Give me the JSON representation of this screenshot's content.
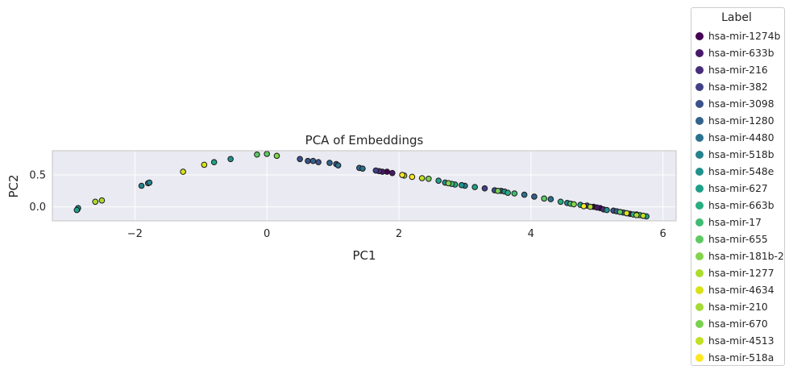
{
  "chart_data": {
    "type": "scatter",
    "title": "PCA of Embeddings",
    "xlabel": "PC1",
    "ylabel": "PC2",
    "xlim": [
      -3.25,
      6.2
    ],
    "ylim": [
      -0.22,
      0.88
    ],
    "xticks": [
      -2,
      0,
      2,
      4,
      6
    ],
    "xtick_labels": [
      "−2",
      "0",
      "2",
      "4",
      "6"
    ],
    "yticks": [
      0.0,
      0.5
    ],
    "ytick_labels": [
      "0.0",
      "0.5"
    ],
    "grid": true,
    "legend_position": "outside-right",
    "legend_title": "Label",
    "series": [
      {
        "name": "hsa-mir-1274b",
        "color": "#440154",
        "points": [
          [
            1.82,
            0.55
          ],
          [
            4.95,
            0.0
          ],
          [
            5.05,
            -0.02
          ],
          [
            5.45,
            -0.1
          ]
        ]
      },
      {
        "name": "hsa-mir-633b",
        "color": "#48186a",
        "points": [
          [
            1.75,
            0.55
          ],
          [
            1.9,
            0.53
          ],
          [
            5.0,
            -0.01
          ],
          [
            5.5,
            -0.11
          ]
        ]
      },
      {
        "name": "hsa-mir-216",
        "color": "#472d7b",
        "points": [
          [
            1.7,
            0.56
          ],
          [
            5.1,
            -0.04
          ],
          [
            5.6,
            -0.12
          ]
        ]
      },
      {
        "name": "hsa-mir-382",
        "color": "#424086",
        "points": [
          [
            1.65,
            0.57
          ],
          [
            3.3,
            0.29
          ],
          [
            4.85,
            0.02
          ],
          [
            5.7,
            -0.14
          ]
        ]
      },
      {
        "name": "hsa-mir-3098",
        "color": "#3b528b",
        "points": [
          [
            0.5,
            0.75
          ],
          [
            0.62,
            0.72
          ],
          [
            0.78,
            0.7
          ],
          [
            1.05,
            0.67
          ],
          [
            3.45,
            0.26
          ],
          [
            5.25,
            -0.06
          ]
        ]
      },
      {
        "name": "hsa-mir-1280",
        "color": "#33638d",
        "points": [
          [
            0.95,
            0.69
          ],
          [
            1.4,
            0.61
          ],
          [
            0.7,
            0.72
          ],
          [
            3.55,
            0.25
          ],
          [
            4.05,
            0.16
          ],
          [
            5.3,
            -0.07
          ]
        ]
      },
      {
        "name": "hsa-mir-4480",
        "color": "#2c728e",
        "points": [
          [
            1.08,
            0.65
          ],
          [
            1.45,
            0.6
          ],
          [
            3.9,
            0.19
          ],
          [
            4.3,
            0.12
          ],
          [
            5.4,
            -0.09
          ]
        ]
      },
      {
        "name": "hsa-mir-518b",
        "color": "#26828e",
        "points": [
          [
            -2.87,
            -0.04
          ],
          [
            -1.9,
            0.33
          ],
          [
            -1.8,
            0.37
          ],
          [
            -1.78,
            0.38
          ],
          [
            3.0,
            0.33
          ],
          [
            4.55,
            0.06
          ]
        ]
      },
      {
        "name": "hsa-mir-548e",
        "color": "#21918c",
        "points": [
          [
            -2.86,
            -0.02
          ],
          [
            -0.55,
            0.75
          ],
          [
            2.7,
            0.38
          ],
          [
            2.95,
            0.34
          ],
          [
            3.6,
            0.24
          ],
          [
            5.15,
            -0.05
          ]
        ]
      },
      {
        "name": "hsa-mir-627",
        "color": "#1fa088",
        "points": [
          [
            -2.88,
            -0.05
          ],
          [
            -0.8,
            0.7
          ],
          [
            2.6,
            0.41
          ],
          [
            3.15,
            0.31
          ],
          [
            4.75,
            0.03
          ],
          [
            5.75,
            -0.15
          ]
        ]
      },
      {
        "name": "hsa-mir-663b",
        "color": "#28ae80",
        "points": [
          [
            2.85,
            0.35
          ],
          [
            3.65,
            0.22
          ],
          [
            4.45,
            0.08
          ],
          [
            5.55,
            -0.12
          ]
        ]
      },
      {
        "name": "hsa-mir-17",
        "color": "#3fbc73",
        "points": [
          [
            2.8,
            0.36
          ],
          [
            3.75,
            0.21
          ],
          [
            4.6,
            0.05
          ],
          [
            5.65,
            -0.13
          ]
        ]
      },
      {
        "name": "hsa-mir-655",
        "color": "#5ec962",
        "points": [
          [
            -0.15,
            0.82
          ],
          [
            0.0,
            0.83
          ],
          [
            4.2,
            0.13
          ],
          [
            5.35,
            -0.08
          ]
        ]
      },
      {
        "name": "hsa-mir-181b-2",
        "color": "#84d44b",
        "points": [
          [
            0.15,
            0.8
          ],
          [
            2.75,
            0.37
          ],
          [
            4.65,
            0.04
          ]
        ]
      },
      {
        "name": "hsa-mir-1277",
        "color": "#addc30",
        "points": [
          [
            -2.6,
            0.08
          ],
          [
            -2.5,
            0.1
          ],
          [
            4.9,
            0.0
          ]
        ]
      },
      {
        "name": "hsa-mir-4634",
        "color": "#d8e219",
        "points": [
          [
            -1.27,
            0.55
          ],
          [
            -0.95,
            0.66
          ],
          [
            5.45,
            -0.1
          ]
        ]
      },
      {
        "name": "hsa-mir-210",
        "color": "#a5db36",
        "points": [
          [
            2.08,
            0.49
          ],
          [
            5.6,
            -0.13
          ]
        ]
      },
      {
        "name": "hsa-mir-670",
        "color": "#7ad151",
        "points": [
          [
            2.45,
            0.44
          ],
          [
            3.5,
            0.25
          ]
        ]
      },
      {
        "name": "hsa-mir-4513",
        "color": "#c2df23",
        "points": [
          [
            2.35,
            0.45
          ],
          [
            5.7,
            -0.14
          ]
        ]
      },
      {
        "name": "hsa-mir-518a",
        "color": "#fde725",
        "points": [
          [
            2.05,
            0.5
          ],
          [
            2.2,
            0.47
          ],
          [
            4.8,
            0.01
          ]
        ]
      }
    ]
  },
  "style": {
    "plot_bg": "#eaeaf2",
    "grid_color": "#ffffff",
    "frame_color": "#cccccc",
    "marker_edge": "#1a1a1a"
  }
}
